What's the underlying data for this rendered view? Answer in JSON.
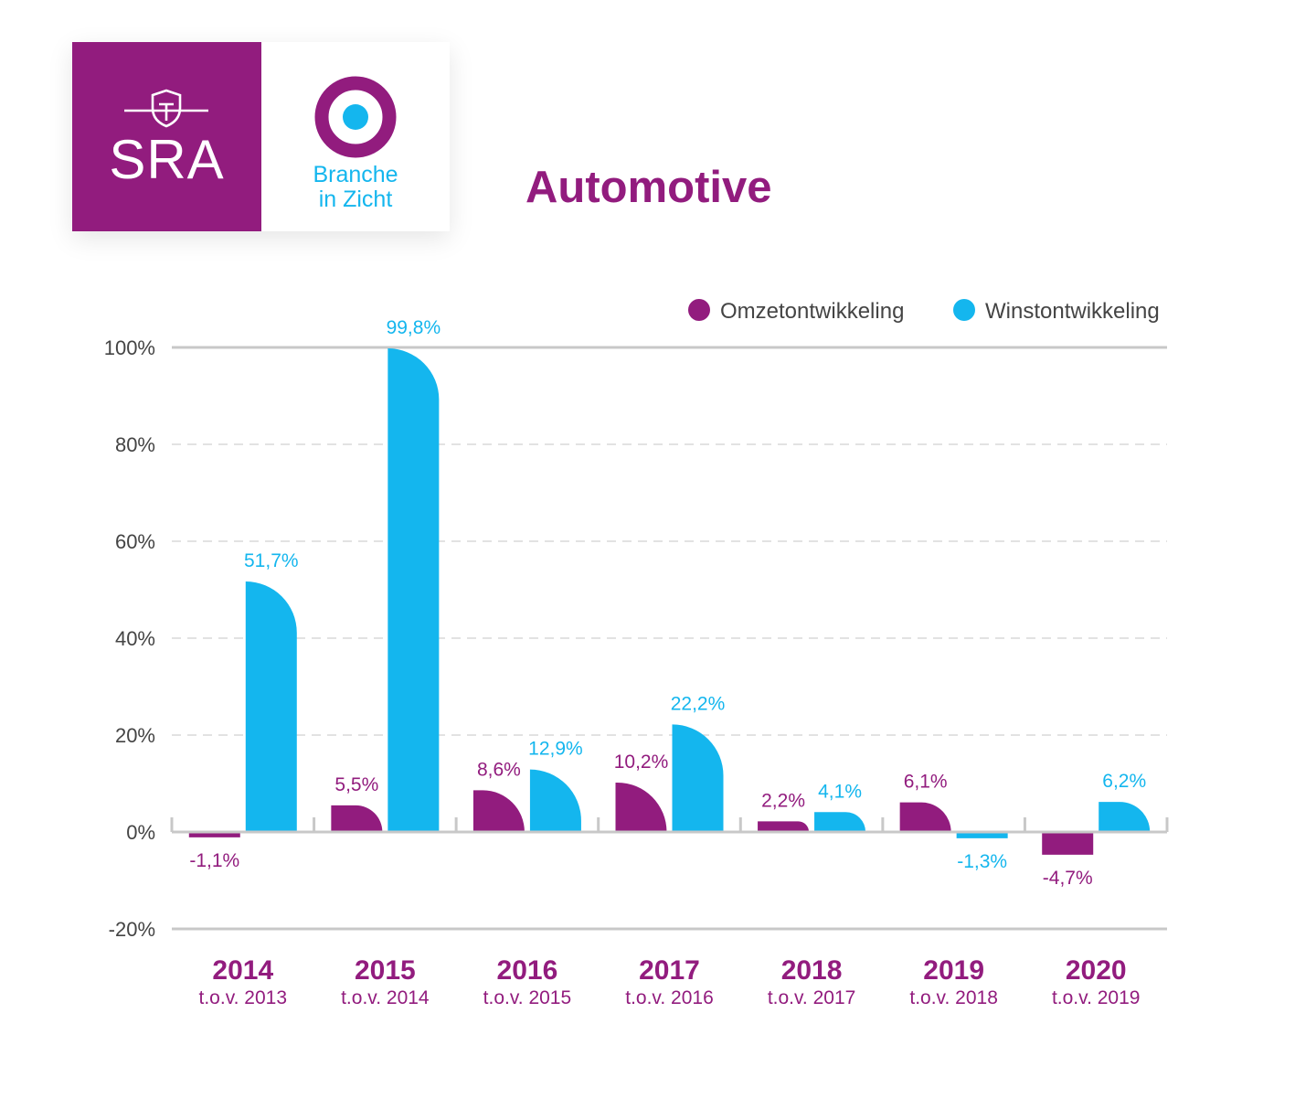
{
  "logos": {
    "sra": {
      "text": "SRA",
      "icon": "sra-shield-icon",
      "background": "#921c7e"
    },
    "branche_in_zicht": {
      "line1": "Branche",
      "line2": "in Zicht",
      "icon": "target-icon",
      "text_color": "#14b6ee"
    }
  },
  "page": {
    "title": "Automotive"
  },
  "chart_data": {
    "type": "bar",
    "categories": [
      "2014",
      "2015",
      "2016",
      "2017",
      "2018",
      "2019",
      "2020"
    ],
    "category_sublabels": [
      "t.o.v. 2013",
      "t.o.v. 2014",
      "t.o.v. 2015",
      "t.o.v. 2016",
      "t.o.v. 2017",
      "t.o.v. 2018",
      "t.o.v. 2019"
    ],
    "series": [
      {
        "name": "Omzetontwikkeling",
        "color": "#921c7e",
        "values": [
          -1.1,
          5.5,
          8.6,
          10.2,
          2.2,
          6.1,
          -4.7
        ],
        "labels": [
          "-1,1%",
          "5,5%",
          "8,6%",
          "10,2%",
          "2,2%",
          "6,1%",
          "-4,7%"
        ]
      },
      {
        "name": "Winstontwikkeling",
        "color": "#14b6ee",
        "values": [
          51.7,
          99.8,
          12.9,
          22.2,
          4.1,
          -1.3,
          6.2
        ],
        "labels": [
          "51,7%",
          "99,8%",
          "12,9%",
          "22,2%",
          "4,1%",
          "-1,3%",
          "6,2%"
        ]
      }
    ],
    "y_ticks": [
      100,
      80,
      60,
      40,
      20,
      0,
      -20
    ],
    "y_tick_labels": [
      "100%",
      "80%",
      "60%",
      "40%",
      "20%",
      "0%",
      "-20%"
    ],
    "ylim": [
      -20,
      100
    ],
    "grid": true,
    "legend": "top-right",
    "colors": {
      "axis": "#c8c8c8",
      "grid": "#d9d9d9",
      "tick_text": "#444444",
      "sublabel": "#921c7e"
    }
  }
}
